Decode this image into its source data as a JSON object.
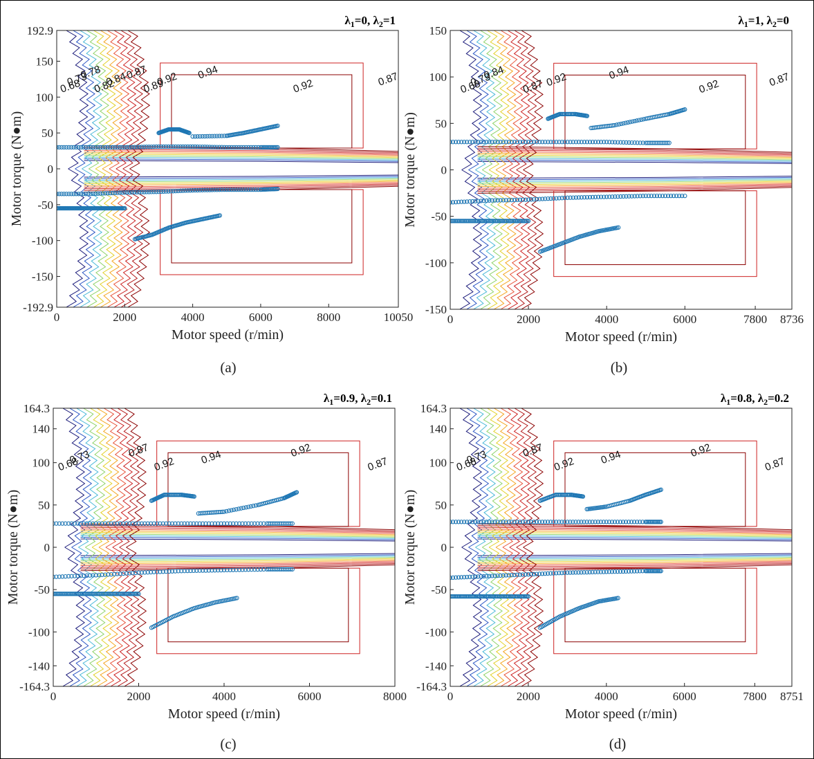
{
  "chart_data": [
    {
      "type": "scatter",
      "panel": "(a)",
      "title": "λ1=0, λ2=1",
      "xlabel": "Motor speed (r/min)",
      "ylabel": "Motor torque (N●m)",
      "xlim": [
        0,
        10050
      ],
      "ylim": [
        -192.9,
        192.9
      ],
      "xticks": [
        "0",
        "2000",
        "4000",
        "6000",
        "8000",
        "10050"
      ],
      "yticks": [
        "192.9",
        "150",
        "100",
        "50",
        "0",
        "-50",
        "-100",
        "-150",
        "-192.9"
      ],
      "xtick_values": [
        0,
        2000,
        4000,
        6000,
        8000,
        10050
      ],
      "ytick_values": [
        192.9,
        150,
        100,
        50,
        0,
        -50,
        -100,
        -150,
        -192.9
      ],
      "contour_levels": [
        "0.68",
        "0.73",
        "0.78",
        "0.82",
        "0.84",
        "0.87",
        "0.89",
        "0.9",
        "0.92",
        "0.94"
      ],
      "contour_labels": [
        {
          "text": "0.68",
          "x": 150,
          "y": 20
        },
        {
          "text": "0.73",
          "x": 350,
          "y": 24
        },
        {
          "text": "0.78",
          "x": 750,
          "y": 24
        },
        {
          "text": "0.82",
          "x": 1150,
          "y": 24
        },
        {
          "text": "0.84",
          "x": 1500,
          "y": 22
        },
        {
          "text": "0.87",
          "x": 2100,
          "y": 22
        },
        {
          "text": "0.89",
          "x": 2600,
          "y": 20
        },
        {
          "text": "0.92",
          "x": 3000,
          "y": 18
        },
        {
          "text": "0.94",
          "x": 4200,
          "y": 20
        },
        {
          "text": "0.92",
          "x": 7000,
          "y": 24
        },
        {
          "text": "0.87",
          "x": 9500,
          "y": 20
        }
      ],
      "series": [
        {
          "x": [
            0,
            1000,
            2000,
            3000,
            4000,
            5000,
            6000,
            6500
          ],
          "y": [
            30,
            30,
            30,
            31,
            31,
            30,
            30,
            30
          ]
        },
        {
          "x": [
            3000,
            3300,
            3600,
            3900
          ],
          "y": [
            50,
            55,
            55,
            50
          ]
        },
        {
          "x": [
            4000,
            5000,
            5500,
            6000,
            6500
          ],
          "y": [
            45,
            46,
            50,
            55,
            60
          ]
        },
        {
          "x": [
            0,
            1000,
            2000,
            3000,
            4000,
            5000,
            6000,
            6500
          ],
          "y": [
            -35,
            -35,
            -33,
            -32,
            -30,
            -29,
            -29,
            -28
          ]
        },
        {
          "x": [
            2300,
            2800,
            3300,
            3800,
            4300,
            4800
          ],
          "y": [
            -98,
            -92,
            -82,
            -75,
            -70,
            -65
          ]
        },
        {
          "x": [
            0,
            400,
            800,
            1200,
            1600,
            2000
          ],
          "y": [
            -55,
            -55,
            -55,
            -55,
            -55,
            -55
          ]
        }
      ]
    },
    {
      "type": "scatter",
      "panel": "(b)",
      "title": "λ1=1, λ2=0",
      "xlabel": "Motor speed (r/min)",
      "ylabel": "Motor torque (N●m)",
      "xlim": [
        0,
        8736
      ],
      "ylim": [
        -150,
        150
      ],
      "xticks": [
        "0",
        "2000",
        "4000",
        "6000",
        "7800",
        "8736"
      ],
      "yticks": [
        "150",
        "100",
        "50",
        "0",
        "-50",
        "-100",
        "-150"
      ],
      "xtick_values": [
        0,
        2000,
        4000,
        6000,
        7800,
        8736
      ],
      "ytick_values": [
        150,
        100,
        50,
        0,
        -50,
        -100,
        -150
      ],
      "contour_levels": [
        "0.68",
        "0.73",
        "0.78",
        "0.82",
        "0.84",
        "0.87",
        "0.89",
        "0.9",
        "0.92",
        "0.94"
      ],
      "contour_labels": [
        {
          "text": "0.68",
          "x": 300,
          "y": 20
        },
        {
          "text": "0.73",
          "x": 560,
          "y": 22
        },
        {
          "text": "0.84",
          "x": 900,
          "y": 22
        },
        {
          "text": "0.87",
          "x": 1900,
          "y": 20
        },
        {
          "text": "0.92",
          "x": 2500,
          "y": 18
        },
        {
          "text": "0.94",
          "x": 4100,
          "y": 20
        },
        {
          "text": "0.92",
          "x": 6400,
          "y": 24
        },
        {
          "text": "0.87",
          "x": 8200,
          "y": 20
        }
      ],
      "series": [
        {
          "x": [
            0,
            1000,
            2000,
            3000,
            4000,
            5000,
            5600
          ],
          "y": [
            30,
            30,
            30,
            30,
            30,
            29,
            29
          ]
        },
        {
          "x": [
            2500,
            2800,
            3200,
            3500
          ],
          "y": [
            55,
            60,
            60,
            58
          ]
        },
        {
          "x": [
            3600,
            4200,
            5000,
            5600,
            6000
          ],
          "y": [
            45,
            48,
            55,
            60,
            65
          ]
        },
        {
          "x": [
            0,
            1000,
            2000,
            3000,
            4000,
            5000,
            6000
          ],
          "y": [
            -35,
            -33,
            -32,
            -30,
            -29,
            -28,
            -28
          ]
        },
        {
          "x": [
            2300,
            2800,
            3300,
            3800,
            4300
          ],
          "y": [
            -88,
            -80,
            -72,
            -66,
            -62
          ]
        },
        {
          "x": [
            0,
            400,
            800,
            1200,
            1600,
            2000
          ],
          "y": [
            -55,
            -55,
            -55,
            -55,
            -55,
            -55
          ]
        }
      ]
    },
    {
      "type": "scatter",
      "panel": "(c)",
      "title": "λ1=0.9, λ2=0.1",
      "xlabel": "Motor speed (r/min)",
      "ylabel": "Motor torque (N●m)",
      "xlim": [
        0,
        8000
      ],
      "ylim": [
        -164.3,
        164.3
      ],
      "xticks": [
        "0",
        "2000",
        "4000",
        "6000",
        "8000"
      ],
      "yticks": [
        "164.3",
        "140",
        "100",
        "50",
        "0",
        "-50",
        "-100",
        "-140",
        "-164.3"
      ],
      "xtick_values": [
        0,
        2000,
        4000,
        6000,
        8000
      ],
      "ytick_values": [
        164.3,
        140,
        100,
        50,
        0,
        -50,
        -100,
        -140,
        -164.3
      ],
      "contour_levels": [
        "0.68",
        "0.73",
        "0.78",
        "0.82",
        "0.84",
        "0.87",
        "0.89",
        "0.9",
        "0.92",
        "0.94"
      ],
      "contour_labels": [
        {
          "text": "0.68",
          "x": 150,
          "y": 20
        },
        {
          "text": "0.73",
          "x": 420,
          "y": 22
        },
        {
          "text": "0.87",
          "x": 1800,
          "y": 20
        },
        {
          "text": "0.92",
          "x": 2400,
          "y": 18
        },
        {
          "text": "0.94",
          "x": 3500,
          "y": 20
        },
        {
          "text": "0.92",
          "x": 5600,
          "y": 24
        },
        {
          "text": "0.87",
          "x": 7400,
          "y": 20
        }
      ],
      "series": [
        {
          "x": [
            0,
            1000,
            2000,
            3000,
            4000,
            5000,
            5600
          ],
          "y": [
            28,
            28,
            28,
            28,
            28,
            28,
            28
          ]
        },
        {
          "x": [
            2300,
            2600,
            3000,
            3300
          ],
          "y": [
            55,
            62,
            62,
            60
          ]
        },
        {
          "x": [
            3400,
            4000,
            4800,
            5400,
            5700
          ],
          "y": [
            40,
            42,
            50,
            58,
            65
          ]
        },
        {
          "x": [
            0,
            1000,
            2000,
            3000,
            4000,
            5000,
            5600
          ],
          "y": [
            -35,
            -33,
            -30,
            -28,
            -27,
            -26,
            -26
          ]
        },
        {
          "x": [
            2300,
            2800,
            3300,
            3800,
            4300
          ],
          "y": [
            -95,
            -82,
            -72,
            -65,
            -60
          ]
        },
        {
          "x": [
            0,
            400,
            800,
            1200,
            1600,
            2000
          ],
          "y": [
            -55,
            -55,
            -55,
            -55,
            -55,
            -55
          ]
        }
      ]
    },
    {
      "type": "scatter",
      "panel": "(d)",
      "title": "λ1=0.8, λ2=0.2",
      "xlabel": "Motor speed (r/min)",
      "ylabel": "Motor torque (N●m)",
      "xlim": [
        0,
        8751
      ],
      "ylim": [
        -164.3,
        164.3
      ],
      "xticks": [
        "0",
        "2000",
        "4000",
        "6000",
        "7800",
        "8751"
      ],
      "yticks": [
        "164.3",
        "140",
        "100",
        "50",
        "0",
        "-50",
        "-100",
        "-140",
        "-164.3"
      ],
      "xtick_values": [
        0,
        2000,
        4000,
        6000,
        7800,
        8751
      ],
      "ytick_values": [
        164.3,
        140,
        100,
        50,
        0,
        -50,
        -100,
        -140,
        -164.3
      ],
      "contour_levels": [
        "0.68",
        "0.73",
        "0.78",
        "0.82",
        "0.84",
        "0.87",
        "0.89",
        "0.9",
        "0.92",
        "0.94"
      ],
      "contour_labels": [
        {
          "text": "0.68",
          "x": 200,
          "y": 20
        },
        {
          "text": "0.73",
          "x": 460,
          "y": 22
        },
        {
          "text": "0.87",
          "x": 1900,
          "y": 20
        },
        {
          "text": "0.92",
          "x": 2700,
          "y": 18
        },
        {
          "text": "0.94",
          "x": 3900,
          "y": 20
        },
        {
          "text": "0.92",
          "x": 6200,
          "y": 24
        },
        {
          "text": "0.87",
          "x": 8100,
          "y": 20
        }
      ],
      "series": [
        {
          "x": [
            0,
            1000,
            2000,
            3000,
            4000,
            5000,
            5400
          ],
          "y": [
            30,
            30,
            30,
            30,
            30,
            30,
            30
          ]
        },
        {
          "x": [
            2300,
            2700,
            3100,
            3400
          ],
          "y": [
            55,
            62,
            62,
            60
          ]
        },
        {
          "x": [
            3500,
            4000,
            4600,
            5000,
            5400
          ],
          "y": [
            45,
            48,
            55,
            62,
            68
          ]
        },
        {
          "x": [
            0,
            1000,
            2000,
            3000,
            4000,
            5000,
            5400
          ],
          "y": [
            -36,
            -34,
            -32,
            -30,
            -29,
            -28,
            -28
          ]
        },
        {
          "x": [
            2300,
            2800,
            3300,
            3800,
            4300
          ],
          "y": [
            -95,
            -82,
            -72,
            -64,
            -60
          ]
        },
        {
          "x": [
            0,
            400,
            800,
            1200,
            1600,
            2000
          ],
          "y": [
            -58,
            -58,
            -58,
            -58,
            -58,
            -58
          ]
        }
      ]
    }
  ],
  "captions": [
    "(a)",
    "(b)",
    "(c)",
    "(d)"
  ],
  "colors": {
    "scatter": "#1f77b4",
    "contours": [
      "#1a1a7a",
      "#2b56c4",
      "#4cb9d8",
      "#8fd36a",
      "#e3d12b",
      "#f5a623",
      "#e8543a",
      "#cc2222",
      "#b31b1b",
      "#8b0000"
    ]
  }
}
